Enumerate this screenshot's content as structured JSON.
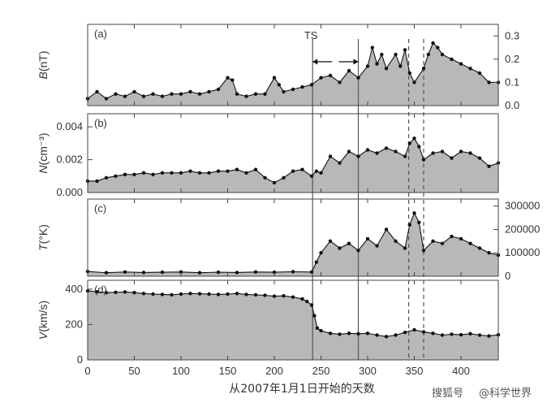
{
  "chart_data": {
    "type": "area",
    "xlabel": "从2007年1月1日开始的天数",
    "xlim": [
      0,
      440
    ],
    "xticks": [
      0,
      50,
      100,
      150,
      200,
      250,
      300,
      350,
      400
    ],
    "annotation": "TS",
    "vlines_solid": [
      241,
      290
    ],
    "vlines_dashed": [
      344,
      360
    ],
    "panels": [
      {
        "id": "B",
        "label": "(a)",
        "ylabel_var": "B",
        "ylabel_unit": "(nT)",
        "axis_side": "right",
        "ylim": [
          0,
          0.35
        ],
        "yticks": [
          0.0,
          0.1,
          0.2,
          0.3
        ],
        "tick_labels": [
          "0.0",
          "0.1",
          "0.2",
          "0.3"
        ],
        "series": {
          "x": [
            0,
            10,
            20,
            30,
            40,
            50,
            60,
            70,
            80,
            90,
            100,
            110,
            120,
            130,
            140,
            150,
            155,
            160,
            170,
            180,
            190,
            200,
            205,
            210,
            220,
            230,
            240,
            250,
            260,
            270,
            280,
            290,
            300,
            305,
            310,
            315,
            320,
            330,
            335,
            340,
            345,
            350,
            360,
            365,
            370,
            375,
            380,
            390,
            400,
            410,
            420,
            430,
            440
          ],
          "y": [
            0.03,
            0.06,
            0.03,
            0.05,
            0.04,
            0.06,
            0.04,
            0.05,
            0.04,
            0.05,
            0.05,
            0.06,
            0.05,
            0.06,
            0.07,
            0.12,
            0.11,
            0.05,
            0.04,
            0.05,
            0.05,
            0.12,
            0.09,
            0.06,
            0.07,
            0.08,
            0.09,
            0.12,
            0.13,
            0.1,
            0.15,
            0.12,
            0.17,
            0.25,
            0.18,
            0.22,
            0.16,
            0.22,
            0.17,
            0.24,
            0.14,
            0.1,
            0.16,
            0.22,
            0.27,
            0.25,
            0.22,
            0.2,
            0.18,
            0.16,
            0.14,
            0.1,
            0.1
          ]
        }
      },
      {
        "id": "N",
        "label": "(b)",
        "ylabel_var": "N",
        "ylabel_unit": "(cm⁻³)",
        "axis_side": "left",
        "ylim": [
          0,
          0.0048
        ],
        "yticks": [
          0.0,
          0.002,
          0.004
        ],
        "tick_labels": [
          "0.000",
          "0.002",
          "0.004"
        ],
        "series": {
          "x": [
            0,
            10,
            20,
            30,
            40,
            50,
            60,
            70,
            80,
            90,
            100,
            110,
            120,
            130,
            140,
            150,
            160,
            170,
            180,
            190,
            200,
            210,
            220,
            230,
            240,
            245,
            250,
            260,
            270,
            280,
            290,
            300,
            310,
            320,
            330,
            340,
            345,
            350,
            355,
            360,
            370,
            380,
            390,
            400,
            410,
            420,
            430,
            440
          ],
          "y": [
            0.0007,
            0.0007,
            0.0009,
            0.001,
            0.0011,
            0.0011,
            0.0012,
            0.0011,
            0.0012,
            0.0012,
            0.0012,
            0.0013,
            0.0012,
            0.0012,
            0.0013,
            0.0013,
            0.0014,
            0.0012,
            0.0014,
            0.0009,
            0.0006,
            0.0009,
            0.0013,
            0.0014,
            0.001,
            0.0013,
            0.0012,
            0.0022,
            0.0018,
            0.0025,
            0.0022,
            0.0026,
            0.0024,
            0.0027,
            0.0025,
            0.0022,
            0.003,
            0.0033,
            0.0028,
            0.002,
            0.0024,
            0.0025,
            0.0021,
            0.0025,
            0.0024,
            0.0021,
            0.0016,
            0.0018
          ]
        }
      },
      {
        "id": "T",
        "label": "(c)",
        "ylabel_var": "T",
        "ylabel_unit": "(°K)",
        "axis_side": "right",
        "ylim": [
          0,
          330000
        ],
        "yticks": [
          0,
          100000,
          200000,
          300000
        ],
        "tick_labels": [
          "0",
          "100000",
          "200000",
          "300000"
        ],
        "series": {
          "x": [
            0,
            20,
            40,
            60,
            80,
            100,
            120,
            140,
            160,
            180,
            200,
            220,
            240,
            245,
            250,
            260,
            270,
            280,
            290,
            300,
            310,
            320,
            330,
            340,
            345,
            350,
            355,
            360,
            370,
            380,
            390,
            400,
            410,
            420,
            430,
            440
          ],
          "y": [
            20000,
            15000,
            18000,
            16000,
            17000,
            18000,
            15000,
            17000,
            16000,
            18000,
            17000,
            19000,
            18000,
            60000,
            100000,
            150000,
            120000,
            140000,
            110000,
            160000,
            130000,
            200000,
            150000,
            120000,
            220000,
            270000,
            230000,
            110000,
            150000,
            140000,
            170000,
            160000,
            140000,
            120000,
            100000,
            90000
          ]
        }
      },
      {
        "id": "V",
        "label": "(d)",
        "ylabel_var": "V",
        "ylabel_unit": "(km/s)",
        "axis_side": "left",
        "ylim": [
          0,
          450
        ],
        "yticks": [
          0,
          200,
          400
        ],
        "tick_labels": [
          "0",
          "200",
          "400"
        ],
        "series": {
          "x": [
            0,
            10,
            20,
            30,
            40,
            50,
            60,
            70,
            80,
            90,
            100,
            110,
            120,
            130,
            140,
            150,
            160,
            170,
            180,
            190,
            200,
            210,
            220,
            230,
            235,
            240,
            243,
            246,
            250,
            260,
            270,
            280,
            290,
            300,
            310,
            320,
            330,
            340,
            350,
            360,
            370,
            380,
            390,
            400,
            410,
            420,
            430,
            440
          ],
          "y": [
            390,
            385,
            380,
            382,
            384,
            380,
            375,
            372,
            370,
            368,
            372,
            375,
            374,
            372,
            370,
            372,
            375,
            370,
            368,
            365,
            360,
            362,
            355,
            345,
            330,
            310,
            250,
            180,
            165,
            150,
            145,
            150,
            148,
            150,
            140,
            132,
            140,
            155,
            170,
            158,
            150,
            140,
            145,
            142,
            148,
            140,
            135,
            142
          ]
        }
      }
    ]
  },
  "watermark": {
    "brand": "搜狐号",
    "author": "@科学世界"
  }
}
